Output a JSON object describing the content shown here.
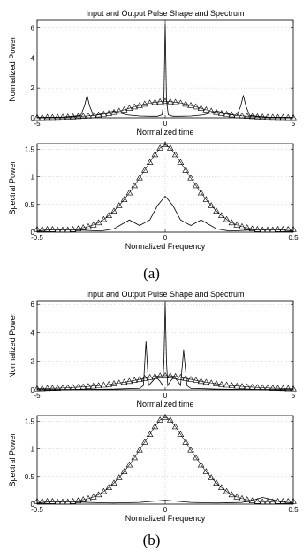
{
  "figure": {
    "captions": [
      "(a)",
      "(b)"
    ]
  },
  "chart_data": [
    {
      "type": "line",
      "title": "Input and Output Pulse Shape and Spectrum",
      "xlabel": "Normalized time",
      "ylabel": "Normalized Power",
      "xlim": [
        -5,
        5
      ],
      "ylim": [
        0,
        6.5
      ],
      "xticks": [
        "-5",
        "0",
        "5"
      ],
      "yticks": [
        "0",
        "2",
        "4",
        "6"
      ],
      "grid": true,
      "series": [
        {
          "style": "solid",
          "x": [
            -5,
            -4,
            -3.3,
            -3.15,
            -3.05,
            -2.95,
            -2.8,
            -2.4,
            -2.0,
            -1.5,
            -1.0,
            -0.6,
            -0.3,
            -0.12,
            -0.05,
            0,
            0.05,
            0.12,
            0.3,
            0.6,
            1.0,
            1.5,
            2.0,
            2.4,
            2.8,
            2.95,
            3.05,
            3.15,
            3.3,
            4,
            5
          ],
          "y": [
            0.02,
            0.04,
            0.15,
            0.8,
            1.5,
            0.8,
            0.15,
            0.3,
            0.45,
            0.2,
            0.12,
            0.1,
            0.1,
            0.2,
            1.2,
            6.3,
            1.2,
            0.2,
            0.1,
            0.1,
            0.12,
            0.2,
            0.45,
            0.3,
            0.15,
            0.8,
            1.5,
            0.8,
            0.15,
            0.04,
            0.02
          ]
        },
        {
          "style": "triangle-markers",
          "x": [
            -5,
            -4.8,
            -4.6,
            -4.4,
            -4.2,
            -4.0,
            -3.8,
            -3.6,
            -3.4,
            -3.2,
            -3.0,
            -2.8,
            -2.6,
            -2.4,
            -2.2,
            -2.0,
            -1.8,
            -1.6,
            -1.4,
            -1.2,
            -1.0,
            -0.8,
            -0.6,
            -0.4,
            -0.2,
            0,
            0.2,
            0.4,
            0.6,
            0.8,
            1.0,
            1.2,
            1.4,
            1.6,
            1.8,
            2.0,
            2.2,
            2.4,
            2.6,
            2.8,
            3.0,
            3.2,
            3.4,
            3.6,
            3.8,
            4.0,
            4.2,
            4.4,
            4.6,
            4.8,
            5
          ],
          "y": [
            0.02,
            0.02,
            0.03,
            0.03,
            0.04,
            0.05,
            0.06,
            0.07,
            0.09,
            0.11,
            0.13,
            0.16,
            0.2,
            0.25,
            0.3,
            0.37,
            0.45,
            0.54,
            0.64,
            0.74,
            0.83,
            0.92,
            0.99,
            1.04,
            1.08,
            1.1,
            1.08,
            1.04,
            0.99,
            0.92,
            0.83,
            0.74,
            0.64,
            0.54,
            0.45,
            0.37,
            0.3,
            0.25,
            0.2,
            0.16,
            0.13,
            0.11,
            0.09,
            0.07,
            0.06,
            0.05,
            0.04,
            0.03,
            0.03,
            0.02,
            0.02
          ]
        }
      ]
    },
    {
      "type": "line",
      "title": "",
      "xlabel": "Normalized Frequency",
      "ylabel": "Spectral Power",
      "xlim": [
        -0.5,
        0.5
      ],
      "ylim": [
        0,
        1.6
      ],
      "xticks": [
        "-0.5",
        "0",
        "0.5"
      ],
      "yticks": [
        "0",
        "0.5",
        "1",
        "1.5"
      ],
      "grid": true,
      "series": [
        {
          "style": "solid",
          "x": [
            -0.5,
            -0.45,
            -0.4,
            -0.35,
            -0.3,
            -0.25,
            -0.2,
            -0.17,
            -0.14,
            -0.1,
            -0.06,
            -0.03,
            0,
            0.03,
            0.06,
            0.1,
            0.14,
            0.17,
            0.2,
            0.25,
            0.3,
            0.35,
            0.4,
            0.45,
            0.5
          ],
          "y": [
            0.02,
            0.04,
            0.05,
            0.04,
            0.03,
            0.02,
            0.06,
            0.14,
            0.22,
            0.12,
            0.22,
            0.48,
            0.65,
            0.48,
            0.22,
            0.12,
            0.22,
            0.14,
            0.06,
            0.02,
            0.03,
            0.04,
            0.05,
            0.04,
            0.02
          ]
        },
        {
          "style": "triangle-markers",
          "x": [
            -0.5,
            -0.48,
            -0.46,
            -0.44,
            -0.42,
            -0.4,
            -0.38,
            -0.36,
            -0.34,
            -0.32,
            -0.3,
            -0.28,
            -0.26,
            -0.24,
            -0.22,
            -0.2,
            -0.18,
            -0.16,
            -0.14,
            -0.12,
            -0.1,
            -0.08,
            -0.06,
            -0.04,
            -0.02,
            0,
            0.02,
            0.04,
            0.06,
            0.08,
            0.1,
            0.12,
            0.14,
            0.16,
            0.18,
            0.2,
            0.22,
            0.24,
            0.26,
            0.28,
            0.3,
            0.32,
            0.34,
            0.36,
            0.38,
            0.4,
            0.42,
            0.44,
            0.46,
            0.48,
            0.5
          ],
          "y": [
            0.05,
            0.05,
            0.05,
            0.05,
            0.04,
            0.04,
            0.04,
            0.05,
            0.06,
            0.08,
            0.1,
            0.13,
            0.17,
            0.23,
            0.3,
            0.38,
            0.48,
            0.59,
            0.71,
            0.84,
            0.98,
            1.12,
            1.26,
            1.4,
            1.52,
            1.58,
            1.52,
            1.4,
            1.26,
            1.12,
            0.98,
            0.84,
            0.71,
            0.59,
            0.48,
            0.38,
            0.3,
            0.23,
            0.17,
            0.13,
            0.1,
            0.08,
            0.06,
            0.05,
            0.04,
            0.04,
            0.04,
            0.05,
            0.05,
            0.05,
            0.05
          ]
        }
      ]
    },
    {
      "type": "line",
      "title": "Input and Output Pulse Shape and Spectrum",
      "xlabel": "Normalized time",
      "ylabel": "Normalized Power",
      "xlim": [
        -5,
        5
      ],
      "ylim": [
        0,
        6.2
      ],
      "xticks": [
        "-5",
        "0",
        "5"
      ],
      "yticks": [
        "0",
        "2",
        "4",
        "6"
      ],
      "grid": true,
      "series": [
        {
          "style": "solid",
          "x": [
            -5,
            -3,
            -2,
            -1.5,
            -1.0,
            -0.85,
            -0.75,
            -0.65,
            -0.5,
            -0.35,
            -0.2,
            -0.1,
            -0.05,
            0,
            0.05,
            0.1,
            0.2,
            0.35,
            0.5,
            0.6,
            0.72,
            0.85,
            1.0,
            1.5,
            2,
            3,
            5
          ],
          "y": [
            0.02,
            0.03,
            0.05,
            0.08,
            0.1,
            0.3,
            3.4,
            0.3,
            0.6,
            0.9,
            0.6,
            0.3,
            2.0,
            6.1,
            2.0,
            0.3,
            0.6,
            0.9,
            0.6,
            0.3,
            2.8,
            0.3,
            0.1,
            0.08,
            0.05,
            0.03,
            0.02
          ]
        },
        {
          "style": "triangle-markers",
          "x": [
            -5,
            -4.8,
            -4.6,
            -4.4,
            -4.2,
            -4.0,
            -3.8,
            -3.6,
            -3.4,
            -3.2,
            -3.0,
            -2.8,
            -2.6,
            -2.4,
            -2.2,
            -2.0,
            -1.8,
            -1.6,
            -1.4,
            -1.2,
            -1.0,
            -0.8,
            -0.6,
            -0.4,
            -0.2,
            0,
            0.2,
            0.4,
            0.6,
            0.8,
            1.0,
            1.2,
            1.4,
            1.6,
            1.8,
            2.0,
            2.2,
            2.4,
            2.6,
            2.8,
            3.0,
            3.2,
            3.4,
            3.6,
            3.8,
            4.0,
            4.2,
            4.4,
            4.6,
            4.8,
            5
          ],
          "y": [
            0.08,
            0.09,
            0.1,
            0.11,
            0.12,
            0.14,
            0.15,
            0.17,
            0.19,
            0.21,
            0.24,
            0.27,
            0.3,
            0.34,
            0.38,
            0.43,
            0.48,
            0.54,
            0.6,
            0.67,
            0.74,
            0.81,
            0.88,
            0.94,
            0.98,
            1.0,
            0.98,
            0.94,
            0.88,
            0.81,
            0.74,
            0.67,
            0.6,
            0.54,
            0.48,
            0.43,
            0.38,
            0.34,
            0.3,
            0.27,
            0.24,
            0.21,
            0.19,
            0.17,
            0.15,
            0.14,
            0.12,
            0.11,
            0.1,
            0.09,
            0.08
          ]
        }
      ]
    },
    {
      "type": "line",
      "title": "",
      "xlabel": "Normalized Frequency",
      "ylabel": "Spectral Power",
      "xlim": [
        -0.5,
        0.5
      ],
      "ylim": [
        0,
        1.6
      ],
      "xticks": [
        "-0.5",
        "0",
        "0.5"
      ],
      "yticks": [
        "0",
        "0.5",
        "1",
        "1.5"
      ],
      "grid": true,
      "series": [
        {
          "style": "solid",
          "x": [
            -0.5,
            -0.45,
            -0.4,
            -0.3,
            -0.2,
            -0.1,
            -0.05,
            0,
            0.05,
            0.1,
            0.2,
            0.3,
            0.35,
            0.38,
            0.42,
            0.45,
            0.5
          ],
          "y": [
            0.02,
            0.04,
            0.05,
            0.03,
            0.02,
            0.03,
            0.05,
            0.07,
            0.05,
            0.03,
            0.02,
            0.03,
            0.08,
            0.12,
            0.08,
            0.04,
            0.02
          ]
        },
        {
          "style": "triangle-markers",
          "x": [
            -0.5,
            -0.48,
            -0.46,
            -0.44,
            -0.42,
            -0.4,
            -0.38,
            -0.36,
            -0.34,
            -0.32,
            -0.3,
            -0.28,
            -0.26,
            -0.24,
            -0.22,
            -0.2,
            -0.18,
            -0.16,
            -0.14,
            -0.12,
            -0.1,
            -0.08,
            -0.06,
            -0.04,
            -0.02,
            0,
            0.02,
            0.04,
            0.06,
            0.08,
            0.1,
            0.12,
            0.14,
            0.16,
            0.18,
            0.2,
            0.22,
            0.24,
            0.26,
            0.28,
            0.3,
            0.32,
            0.34,
            0.36,
            0.38,
            0.4,
            0.42,
            0.44,
            0.46,
            0.48,
            0.5
          ],
          "y": [
            0.05,
            0.05,
            0.05,
            0.05,
            0.04,
            0.04,
            0.04,
            0.05,
            0.06,
            0.08,
            0.1,
            0.13,
            0.17,
            0.23,
            0.3,
            0.38,
            0.48,
            0.59,
            0.71,
            0.84,
            0.98,
            1.12,
            1.26,
            1.4,
            1.52,
            1.57,
            1.52,
            1.4,
            1.26,
            1.12,
            0.98,
            0.84,
            0.71,
            0.59,
            0.48,
            0.38,
            0.3,
            0.23,
            0.17,
            0.13,
            0.1,
            0.08,
            0.06,
            0.05,
            0.04,
            0.04,
            0.04,
            0.05,
            0.05,
            0.05,
            0.05
          ]
        }
      ]
    }
  ]
}
